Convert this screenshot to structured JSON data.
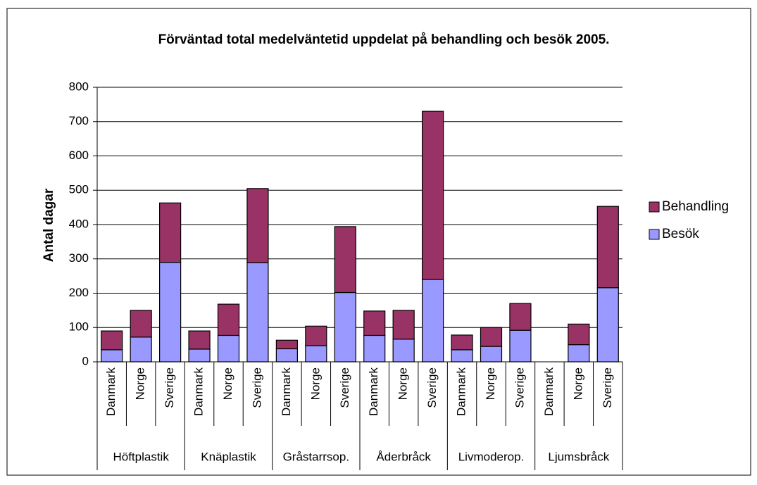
{
  "chart_data": {
    "type": "stacked_bar",
    "title": "Förväntad total medelväntetid uppdelat på behandling och besök 2005.",
    "ylabel": "Antal dagar",
    "categories": [
      "Danmark",
      "Norge",
      "Sverige",
      "Danmark",
      "Norge",
      "Sverige",
      "Danmark",
      "Norge",
      "Sverige",
      "Danmark",
      "Norge",
      "Sverige",
      "Danmark",
      "Norge",
      "Sverige",
      "Danmark",
      "Norge",
      "Sverige"
    ],
    "groups": [
      "Höftplastik",
      "Knäplastik",
      "Gråstarrsop.",
      "Åderbråck",
      "Livmoderop.",
      "Ljumsbråck"
    ],
    "series": [
      {
        "name": "Besök",
        "color": "#9999ff",
        "values": [
          35,
          72,
          290,
          37,
          77,
          289,
          38,
          47,
          202,
          77,
          66,
          240,
          35,
          45,
          92,
          null,
          50,
          216
        ]
      },
      {
        "name": "Behandling",
        "color": "#993366",
        "values": [
          55,
          78,
          173,
          53,
          91,
          216,
          25,
          57,
          192,
          71,
          84,
          490,
          43,
          55,
          78,
          null,
          60,
          237
        ]
      }
    ],
    "ylim": [
      0,
      800
    ],
    "yticks": [
      0,
      100,
      200,
      300,
      400,
      500,
      600,
      700,
      800
    ],
    "grid": true,
    "legend": "right"
  }
}
